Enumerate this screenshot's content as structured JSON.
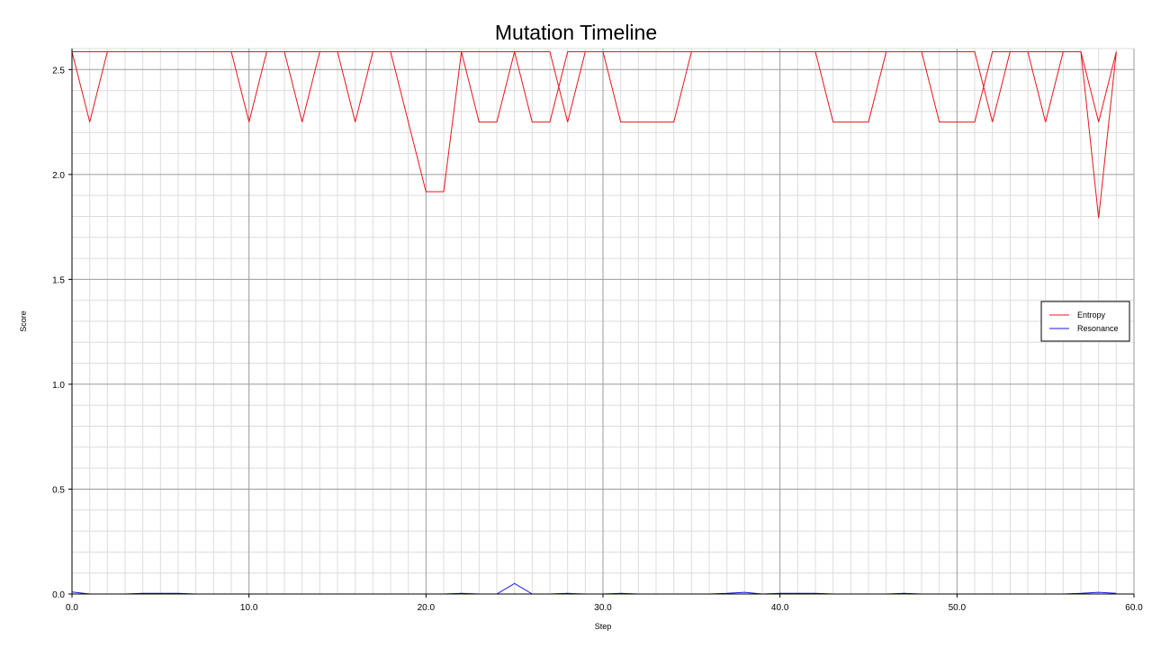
{
  "chart_data": {
    "type": "line",
    "title": "Mutation Timeline",
    "xlabel": "Step",
    "ylabel": "Score",
    "xlim": [
      0,
      60
    ],
    "ylim": [
      0,
      2.6
    ],
    "x_ticks": [
      "0.0",
      "10.0",
      "20.0",
      "30.0",
      "40.0",
      "50.0",
      "60.0"
    ],
    "y_ticks": [
      "0.0",
      "0.5",
      "1.0",
      "1.5",
      "2.0",
      "2.5"
    ],
    "grid": true,
    "legend_position": "right",
    "x": [
      0,
      1,
      2,
      3,
      4,
      5,
      6,
      7,
      8,
      9,
      10,
      11,
      12,
      13,
      14,
      15,
      16,
      17,
      18,
      19,
      20,
      21,
      22,
      23,
      24,
      25,
      26,
      27,
      28,
      29,
      30,
      31,
      32,
      33,
      34,
      35,
      36,
      37,
      38,
      39,
      40,
      41,
      42,
      43,
      44,
      45,
      46,
      47,
      48,
      49,
      50,
      51,
      52,
      53,
      54,
      55,
      56,
      57,
      58,
      59
    ],
    "series": [
      {
        "name": "Entropy",
        "color": "#e8141c",
        "values": [
          2.585,
          2.25,
          2.585,
          2.585,
          2.585,
          2.585,
          2.585,
          2.585,
          2.585,
          2.585,
          2.25,
          2.585,
          2.585,
          2.25,
          2.585,
          2.585,
          2.25,
          2.585,
          2.585,
          2.25,
          1.918,
          1.918,
          2.585,
          2.25,
          2.25,
          2.585,
          2.25,
          2.25,
          2.585,
          2.585,
          2.585,
          2.25,
          2.25,
          2.25,
          2.25,
          2.585,
          2.585,
          2.585,
          2.585,
          2.585,
          2.585,
          2.585,
          2.585,
          2.25,
          2.25,
          2.25,
          2.585,
          2.585,
          2.585,
          2.25,
          2.25,
          2.25,
          2.585,
          2.585,
          2.585,
          2.25,
          2.585,
          2.585,
          2.25,
          2.585
        ],
        "values_alt": [
          2.585,
          2.585,
          2.585,
          2.585,
          2.585,
          2.585,
          2.585,
          2.585,
          2.585,
          2.585,
          2.585,
          2.585,
          2.585,
          2.585,
          2.585,
          2.585,
          2.585,
          2.585,
          2.585,
          2.585,
          2.585,
          2.585,
          2.585,
          2.585,
          2.585,
          2.585,
          2.585,
          2.585,
          2.25,
          2.585,
          2.585,
          2.585,
          2.585,
          2.585,
          2.585,
          2.585,
          2.585,
          2.585,
          2.585,
          2.585,
          2.585,
          2.585,
          2.585,
          2.585,
          2.585,
          2.585,
          2.585,
          2.585,
          2.585,
          2.585,
          2.585,
          2.585,
          2.25,
          2.585,
          2.585,
          2.585,
          2.585,
          2.585,
          1.792,
          2.585
        ]
      },
      {
        "name": "Resonance",
        "color": "#1a1adc",
        "values": [
          0.01,
          0.0,
          0.0,
          0.0,
          0.003,
          0.003,
          0.003,
          0.0,
          0.0,
          0.0,
          0.0,
          0.0,
          0.0,
          0.0,
          0.0,
          0.0,
          0.0,
          0.0,
          0.0,
          0.0,
          0.0,
          0.0,
          0.003,
          0.0,
          0.0,
          0.05,
          0.0,
          0.0,
          0.003,
          0.0,
          0.0,
          0.003,
          0.0,
          0.0,
          0.0,
          0.0,
          0.0,
          0.003,
          0.008,
          0.0,
          0.003,
          0.003,
          0.003,
          0.0,
          0.0,
          0.0,
          0.0,
          0.003,
          0.0,
          0.0,
          0.0,
          0.0,
          0.0,
          0.0,
          0.0,
          0.0,
          0.0,
          0.003,
          0.008,
          0.003
        ]
      }
    ]
  }
}
